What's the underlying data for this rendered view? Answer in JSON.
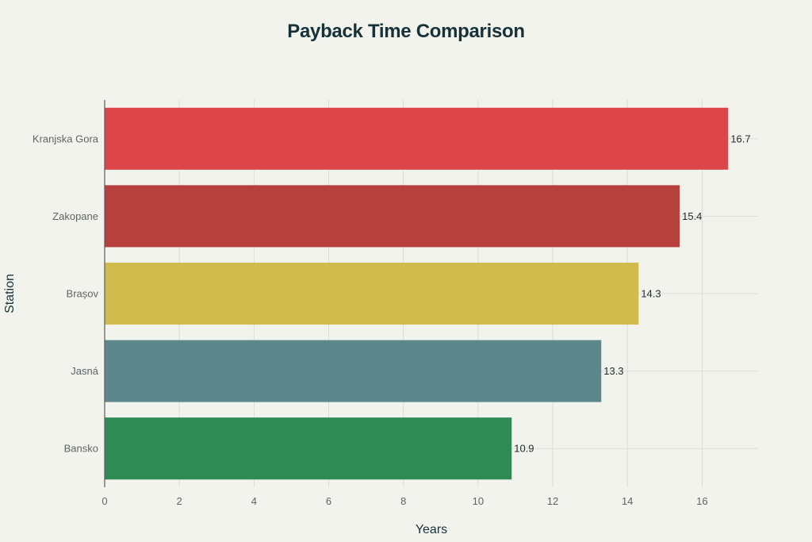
{
  "chart_data": {
    "type": "bar",
    "orientation": "horizontal",
    "title": "Payback Time Comparison",
    "xlabel": "Years",
    "ylabel": "Station",
    "categories": [
      "Kranjska Gora",
      "Zakopane",
      "Brașov",
      "Jasná",
      "Bansko"
    ],
    "values": [
      16.7,
      15.4,
      14.3,
      13.3,
      10.9
    ],
    "value_labels": [
      "16.7",
      "15.4",
      "14.3",
      "13.3",
      "10.9"
    ],
    "colors": [
      "#dc4649",
      "#b8403c",
      "#d2bb4d",
      "#5e878c",
      "#2f8a55"
    ],
    "xlim": [
      0,
      17.5
    ],
    "x_ticks": [
      0,
      2,
      4,
      6,
      8,
      10,
      12,
      14,
      16
    ],
    "x_tick_labels": [
      "0",
      "2",
      "4",
      "6",
      "8",
      "10",
      "12",
      "14",
      "16"
    ],
    "grid": true,
    "legend": false
  }
}
